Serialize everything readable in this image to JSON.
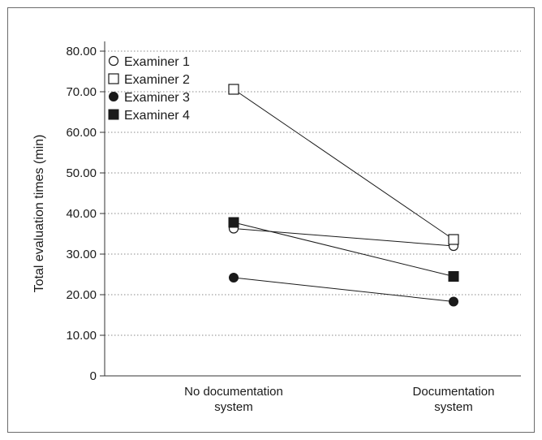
{
  "chart_data": {
    "type": "line",
    "title": "",
    "xlabel": "",
    "ylabel": "Total evaluation times (min)",
    "categories": [
      [
        "No documentation",
        "system"
      ],
      [
        "Documentation",
        "system"
      ]
    ],
    "y_ticks": [
      "0",
      "10.00",
      "20.00",
      "30.00",
      "40.00",
      "50.00",
      "60.00",
      "70.00",
      "80.00"
    ],
    "ylim": [
      0,
      80
    ],
    "grid": "horizontal dotted",
    "legend_position": "top-left",
    "series": [
      {
        "name": "Examiner 1",
        "marker": "circle-open",
        "values": [
          36.3,
          32.0
        ]
      },
      {
        "name": "Examiner 2",
        "marker": "square-open",
        "values": [
          70.6,
          33.6
        ]
      },
      {
        "name": "Examiner 3",
        "marker": "circle-filled",
        "values": [
          24.2,
          18.3
        ]
      },
      {
        "name": "Examiner 4",
        "marker": "square-filled",
        "values": [
          37.8,
          24.5
        ]
      }
    ]
  }
}
